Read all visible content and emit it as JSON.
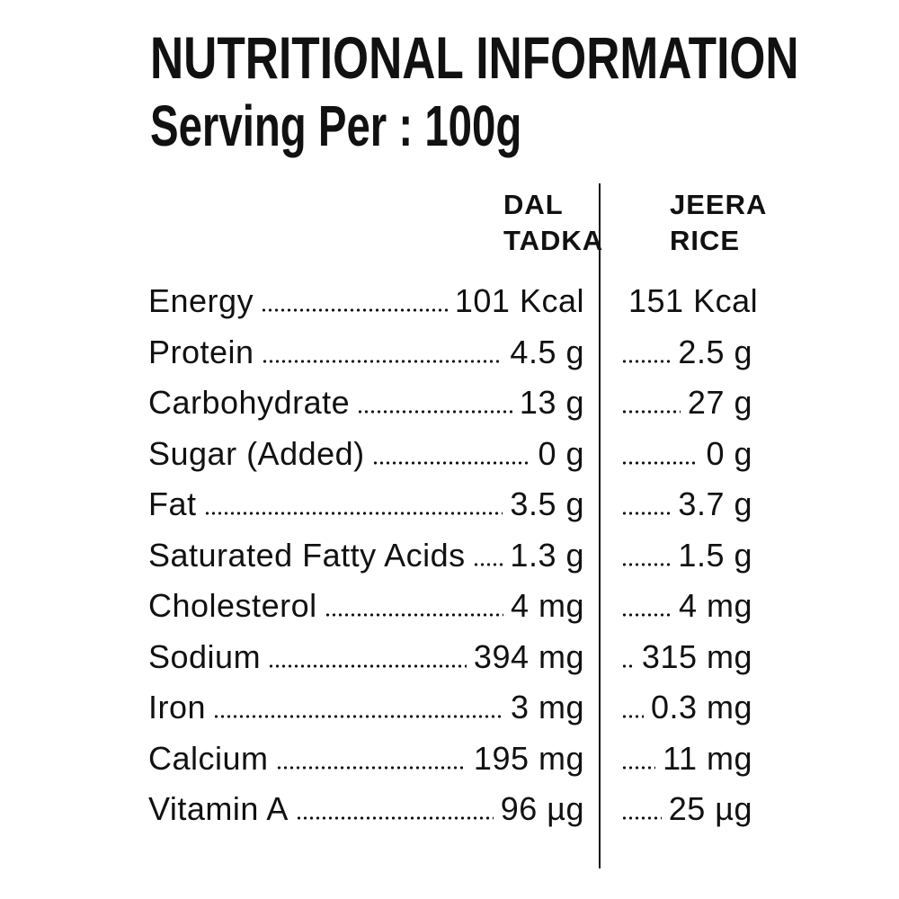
{
  "header": {
    "title": "NUTRITIONAL INFORMATION",
    "subtitle": "Serving Per : 100g"
  },
  "table": {
    "columns": [
      "DAL TADKA",
      "JEERA RICE"
    ],
    "rows": [
      [
        "Energy",
        "101 Kcal",
        "151 Kcal"
      ],
      [
        "Protein",
        "4.5 g",
        "2.5 g"
      ],
      [
        "Carbohydrate",
        "13 g",
        "27 g"
      ],
      [
        "Sugar (Added)",
        "0 g",
        "0 g"
      ],
      [
        "Fat",
        "3.5 g",
        "3.7 g"
      ],
      [
        "Saturated Fatty Acids",
        "1.3 g",
        "1.5 g"
      ],
      [
        "Cholesterol",
        "4 mg",
        "4 mg"
      ],
      [
        "Sodium",
        "394 mg",
        "315 mg"
      ],
      [
        "Iron",
        "3 mg",
        "0.3 mg"
      ],
      [
        "Calcium",
        "195 mg",
        "11 mg"
      ],
      [
        "Vitamin A",
        "96 µg",
        "25 µg"
      ]
    ]
  }
}
